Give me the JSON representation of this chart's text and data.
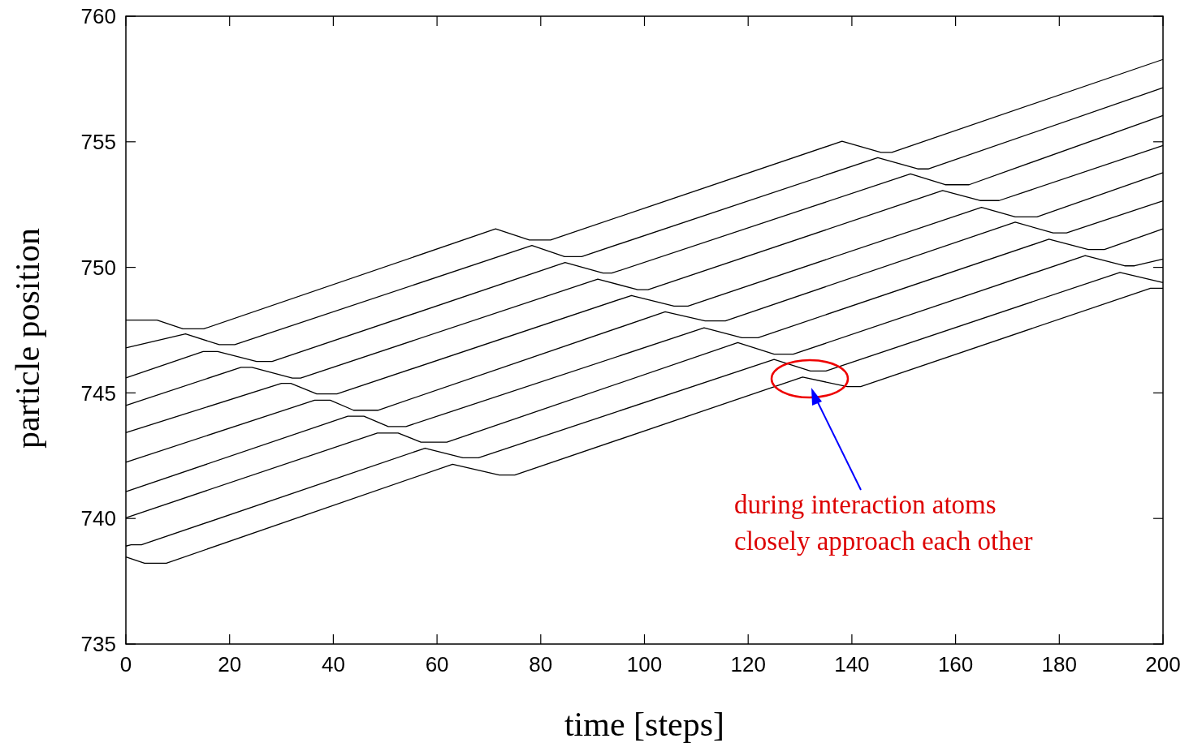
{
  "chart_data": {
    "type": "line",
    "xlabel": "time [steps]",
    "ylabel": "particle position",
    "xlim": [
      0,
      200
    ],
    "xticks": [
      0,
      20,
      40,
      60,
      80,
      100,
      120,
      140,
      160,
      180,
      200
    ],
    "ylim": [
      735,
      760
    ],
    "yticks": [
      735,
      740,
      745,
      750,
      755,
      760
    ],
    "grid": false,
    "marker": "none",
    "line_style": "solid",
    "annotations": [
      "during interaction atoms\nclosely approach each other"
    ],
    "series": [
      {
        "color": "#000000",
        "x": [
          0,
          6,
          11,
          15,
          71.3,
          77.8,
          81.9,
          138.1,
          145.6,
          147.7,
          200
        ],
        "values": [
          747.9,
          747.9,
          747.55,
          747.55,
          751.53,
          751.09,
          751.09,
          755.02,
          754.58,
          754.58,
          758.28
        ]
      },
      {
        "color": "#000000",
        "x": [
          0,
          11.5,
          18,
          21,
          78.3,
          84.6,
          87.9,
          145,
          152.7,
          154.8,
          200
        ],
        "values": [
          746.79,
          747.35,
          746.92,
          746.92,
          750.87,
          750.43,
          750.43,
          754.37,
          753.92,
          753.92,
          757.15
        ]
      },
      {
        "color": "#000000",
        "x": [
          0,
          14.9,
          17.7,
          25.2,
          28.2,
          84.7,
          92,
          93.7,
          151.3,
          158,
          162.6,
          200
        ],
        "values": [
          745.6,
          746.65,
          746.65,
          746.25,
          746.25,
          750.19,
          749.77,
          749.77,
          753.72,
          753.29,
          753.29,
          756.05
        ]
      },
      {
        "color": "#000000",
        "x": [
          0,
          22.2,
          24.3,
          32.1,
          33.7,
          91,
          98.7,
          100.7,
          157.5,
          164.7,
          168.4,
          200
        ],
        "values": [
          744.5,
          746.02,
          746.02,
          745.59,
          745.59,
          749.53,
          749.11,
          749.11,
          753.06,
          752.66,
          752.66,
          754.85
        ]
      },
      {
        "color": "#000000",
        "x": [
          0,
          30,
          31.8,
          36.8,
          40.7,
          97.5,
          105.7,
          108.4,
          165,
          171.5,
          175.7,
          200
        ],
        "values": [
          743.42,
          745.38,
          745.38,
          744.96,
          744.96,
          748.88,
          748.46,
          748.46,
          752.39,
          752.01,
          752.01,
          753.77
        ]
      },
      {
        "color": "#000000",
        "x": [
          0,
          36.4,
          39.4,
          43.9,
          48.6,
          104,
          111.7,
          115.6,
          171.5,
          178.8,
          181.4,
          200
        ],
        "values": [
          742.24,
          744.71,
          744.71,
          744.31,
          744.31,
          748.23,
          747.87,
          747.87,
          751.8,
          751.37,
          751.37,
          752.65
        ]
      },
      {
        "color": "#000000",
        "x": [
          0,
          42.8,
          45.9,
          50.6,
          54,
          111.5,
          118.8,
          121.9,
          178,
          185.6,
          188.7,
          200
        ],
        "values": [
          741.07,
          744.07,
          744.07,
          743.66,
          743.66,
          747.59,
          747.2,
          747.2,
          751.12,
          750.71,
          750.71,
          751.53
        ]
      },
      {
        "color": "#000000",
        "x": [
          0,
          48.5,
          52.5,
          56.9,
          61.9,
          118,
          125,
          128.7,
          185,
          192.6,
          194.5,
          200
        ],
        "values": [
          740.03,
          743.4,
          743.4,
          743.04,
          743.04,
          747,
          746.54,
          746.54,
          750.47,
          750.06,
          750.06,
          750.33
        ]
      },
      {
        "color": "#000000",
        "x": [
          0,
          1,
          3,
          57.7,
          65,
          68,
          125,
          132,
          135,
          191.7,
          200
        ],
        "values": [
          738.9,
          738.95,
          738.95,
          742.8,
          742.42,
          742.42,
          746.33,
          745.87,
          745.87,
          749.8,
          749.39
        ]
      },
      {
        "color": "#000000",
        "x": [
          0,
          3.6,
          7.8,
          63,
          72,
          75,
          130.5,
          139.1,
          141.7,
          197.6,
          200
        ],
        "values": [
          738.47,
          738.22,
          738.22,
          742.16,
          741.73,
          741.73,
          745.63,
          745.25,
          745.25,
          749.17,
          749.17
        ]
      }
    ]
  }
}
